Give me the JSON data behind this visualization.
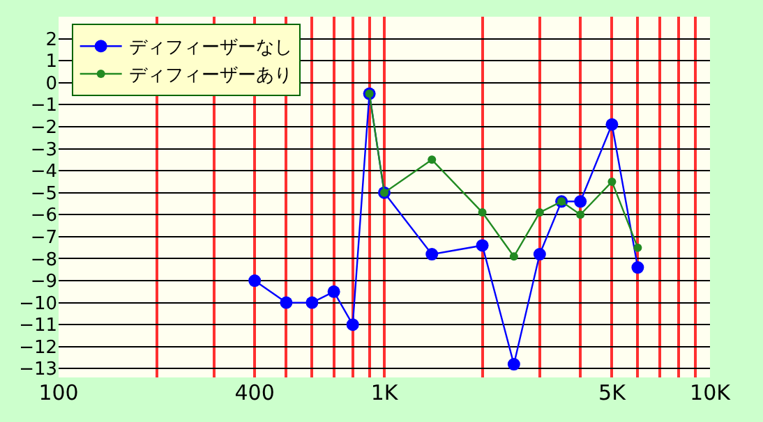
{
  "chart_data": {
    "type": "line",
    "x": [
      400,
      500,
      600,
      700,
      800,
      900,
      1000,
      1400,
      2000,
      2500,
      3000,
      3500,
      4000,
      5000,
      6000
    ],
    "series": [
      {
        "name": "ディフィーザーなし",
        "color": "#0000ff",
        "values": [
          -9,
          -10,
          -10,
          -9.5,
          -11,
          -0.5,
          -5,
          -7.8,
          -7.4,
          -12.8,
          -7.8,
          -5.4,
          -5.4,
          -1.9,
          -8.4
        ]
      },
      {
        "name": "ディフィーザーあり",
        "color": "#228b22",
        "values": [
          null,
          null,
          null,
          null,
          null,
          -0.5,
          -5,
          -3.5,
          -5.9,
          -7.9,
          -5.9,
          -5.4,
          -6,
          -4.5,
          -7.5
        ]
      }
    ],
    "log": "x",
    "xlim": [
      100,
      10000
    ],
    "xticks": [
      {
        "value": 100,
        "label": "100"
      },
      {
        "value": 200,
        "label": null
      },
      {
        "value": 300,
        "label": null
      },
      {
        "value": 400,
        "label": "400"
      },
      {
        "value": 500,
        "label": null
      },
      {
        "value": 600,
        "label": null
      },
      {
        "value": 700,
        "label": null
      },
      {
        "value": 800,
        "label": null
      },
      {
        "value": 900,
        "label": null
      },
      {
        "value": 1000,
        "label": "1K"
      },
      {
        "value": 2000,
        "label": null
      },
      {
        "value": 3000,
        "label": null
      },
      {
        "value": 4000,
        "label": null
      },
      {
        "value": 5000,
        "label": "5K"
      },
      {
        "value": 6000,
        "label": null
      },
      {
        "value": 7000,
        "label": null
      },
      {
        "value": 8000,
        "label": null
      },
      {
        "value": 9000,
        "label": null
      },
      {
        "value": 10000,
        "label": "10K"
      }
    ],
    "ylim": [
      -13.4,
      3
    ],
    "yticks": [
      -13,
      -12,
      -11,
      -10,
      -9,
      -8,
      -7,
      -6,
      -5,
      -4,
      -3,
      -2,
      -1,
      0,
      1,
      2
    ],
    "grid": true,
    "legend": "top left",
    "marker": "circle",
    "line_style": "solid"
  }
}
